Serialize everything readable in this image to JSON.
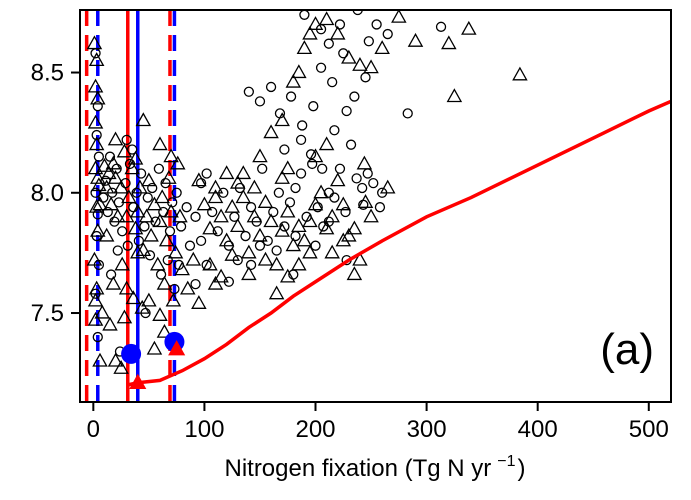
{
  "chart_data": {
    "type": "scatter",
    "title": "",
    "xlabel": "Nitrogen fixation (Tg N yr",
    "xlabel_superscript": "−1",
    "xlabel_close": ")",
    "ylabel": "",
    "panel_label": "(a)",
    "xlim": [
      -12,
      520
    ],
    "ylim": [
      7.13,
      8.76
    ],
    "xticks": [
      0,
      100,
      200,
      300,
      400,
      500
    ],
    "yticks": [
      7.5,
      8.0,
      8.5
    ],
    "xtick_labels": [
      "0",
      "100",
      "200",
      "300",
      "400",
      "500"
    ],
    "ytick_labels": [
      "7.5",
      "8.0",
      "8.5"
    ],
    "grid": false,
    "colors": {
      "red": "#ff0000",
      "blue": "#0000ff",
      "marker": "#000000"
    },
    "series": [
      {
        "marker": "triangle-open",
        "values": [
          [
            1,
            8.62
          ],
          [
            3,
            8.55
          ],
          [
            2,
            8.44
          ],
          [
            4,
            8.39
          ],
          [
            2,
            8.29
          ],
          [
            3,
            8.2
          ],
          [
            2,
            8.1
          ],
          [
            5,
            8.03
          ],
          [
            3,
            7.94
          ],
          [
            4,
            7.84
          ],
          [
            1,
            7.72
          ],
          [
            3,
            7.6
          ],
          [
            2,
            7.55
          ],
          [
            2,
            7.47
          ],
          [
            6,
            7.3
          ],
          [
            4,
            8.06
          ],
          [
            6,
            7.95
          ],
          [
            10,
            8.11
          ],
          [
            12,
            8.02
          ],
          [
            14,
            8.08
          ],
          [
            16,
            7.95
          ],
          [
            18,
            8.12
          ],
          [
            20,
            8.06
          ],
          [
            22,
            7.9
          ],
          [
            25,
            8.02
          ],
          [
            28,
            8.17
          ],
          [
            30,
            7.9
          ],
          [
            32,
            7.98
          ],
          [
            35,
            8.1
          ],
          [
            38,
            7.85
          ],
          [
            40,
            7.92
          ],
          [
            42,
            8.02
          ],
          [
            45,
            7.76
          ],
          [
            48,
            7.9
          ],
          [
            50,
            8.05
          ],
          [
            52,
            7.82
          ],
          [
            55,
            7.95
          ],
          [
            58,
            7.7
          ],
          [
            60,
            7.88
          ],
          [
            62,
            7.98
          ],
          [
            64,
            7.62
          ],
          [
            66,
            7.8
          ],
          [
            68,
            8.06
          ],
          [
            70,
            7.92
          ],
          [
            72,
            7.55
          ],
          [
            74,
            7.75
          ],
          [
            76,
            8.12
          ],
          [
            78,
            7.9
          ],
          [
            80,
            7.68
          ],
          [
            20,
            7.3
          ],
          [
            25,
            7.27
          ],
          [
            30,
            7.6
          ],
          [
            50,
            7.55
          ],
          [
            60,
            7.49
          ],
          [
            40,
            7.75
          ],
          [
            12,
            7.82
          ],
          [
            15,
            7.45
          ],
          [
            45,
            8.3
          ],
          [
            38,
            8.14
          ],
          [
            20,
            8.22
          ],
          [
            8,
            7.5
          ],
          [
            95,
            8.05
          ],
          [
            100,
            7.95
          ],
          [
            105,
            7.85
          ],
          [
            110,
            7.98
          ],
          [
            115,
            7.9
          ],
          [
            120,
            7.8
          ],
          [
            125,
            7.94
          ],
          [
            130,
            7.86
          ],
          [
            135,
            7.98
          ],
          [
            140,
            7.75
          ],
          [
            145,
            7.9
          ],
          [
            150,
            7.82
          ],
          [
            155,
            7.96
          ],
          [
            160,
            7.88
          ],
          [
            165,
            7.7
          ],
          [
            170,
            7.84
          ],
          [
            175,
            7.92
          ],
          [
            180,
            7.78
          ],
          [
            185,
            7.86
          ],
          [
            190,
            7.8
          ],
          [
            195,
            7.88
          ],
          [
            200,
            7.95
          ],
          [
            205,
            8.0
          ],
          [
            210,
            7.85
          ],
          [
            215,
            7.9
          ],
          [
            220,
            8.05
          ],
          [
            225,
            7.8
          ],
          [
            230,
            7.82
          ],
          [
            235,
            7.66
          ],
          [
            240,
            7.72
          ],
          [
            245,
            7.96
          ],
          [
            250,
            7.9
          ],
          [
            160,
            8.25
          ],
          [
            170,
            8.3
          ],
          [
            180,
            8.46
          ],
          [
            185,
            8.5
          ],
          [
            190,
            8.6
          ],
          [
            195,
            8.66
          ],
          [
            200,
            8.7
          ],
          [
            210,
            8.72
          ],
          [
            220,
            8.66
          ],
          [
            230,
            8.56
          ],
          [
            240,
            8.53
          ],
          [
            250,
            8.52
          ],
          [
            260,
            8.6
          ],
          [
            275,
            8.73
          ],
          [
            290,
            8.63
          ],
          [
            320,
            8.62
          ],
          [
            338,
            8.68
          ],
          [
            384,
            8.49
          ],
          [
            325,
            8.4
          ],
          [
            200,
            8.15
          ],
          [
            210,
            8.2
          ],
          [
            175,
            8.1
          ],
          [
            150,
            8.15
          ],
          [
            135,
            8.08
          ],
          [
            125,
            7.74
          ],
          [
            115,
            7.65
          ],
          [
            90,
            7.72
          ],
          [
            85,
            7.6
          ],
          [
            95,
            7.54
          ],
          [
            105,
            7.7
          ],
          [
            110,
            7.62
          ],
          [
            140,
            7.66
          ],
          [
            155,
            7.72
          ],
          [
            165,
            7.58
          ],
          [
            175,
            7.65
          ],
          [
            185,
            7.7
          ],
          [
            195,
            7.75
          ],
          [
            215,
            7.75
          ],
          [
            225,
            7.95
          ],
          [
            265,
            8.02
          ],
          [
            235,
            7.85
          ],
          [
            244,
            8.12
          ],
          [
            60,
            8.2
          ],
          [
            70,
            8.15
          ],
          [
            73,
            7.38
          ],
          [
            55,
            7.35
          ],
          [
            64,
            7.42
          ],
          [
            28,
            7.48
          ],
          [
            36,
            7.56
          ],
          [
            44,
            7.52
          ],
          [
            18,
            7.62
          ],
          [
            26,
            7.7
          ],
          [
            110,
            8.02
          ],
          [
            120,
            8.08
          ],
          [
            130,
            8.04
          ],
          [
            145,
            8.02
          ],
          [
            170,
            8.06
          ]
        ]
      },
      {
        "marker": "circle-open",
        "values": [
          [
            2,
            8.58
          ],
          [
            4,
            8.36
          ],
          [
            3,
            8.24
          ],
          [
            5,
            8.15
          ],
          [
            2,
            8.0
          ],
          [
            4,
            7.91
          ],
          [
            3,
            7.82
          ],
          [
            5,
            7.7
          ],
          [
            2,
            7.58
          ],
          [
            4,
            7.4
          ],
          [
            9,
            7.98
          ],
          [
            11,
            8.05
          ],
          [
            13,
            7.92
          ],
          [
            15,
            8.15
          ],
          [
            17,
            8.0
          ],
          [
            19,
            7.88
          ],
          [
            21,
            8.1
          ],
          [
            23,
            7.96
          ],
          [
            26,
            7.84
          ],
          [
            29,
            8.04
          ],
          [
            31,
            7.78
          ],
          [
            33,
            8.12
          ],
          [
            36,
            7.94
          ],
          [
            39,
            8.0
          ],
          [
            41,
            7.8
          ],
          [
            43,
            8.08
          ],
          [
            46,
            7.86
          ],
          [
            49,
            7.98
          ],
          [
            51,
            7.74
          ],
          [
            53,
            8.02
          ],
          [
            56,
            7.88
          ],
          [
            59,
            8.1
          ],
          [
            61,
            7.66
          ],
          [
            63,
            7.92
          ],
          [
            65,
            8.04
          ],
          [
            67,
            7.72
          ],
          [
            69,
            7.84
          ],
          [
            71,
            7.96
          ],
          [
            73,
            7.6
          ],
          [
            75,
            8.0
          ],
          [
            77,
            7.7
          ],
          [
            79,
            7.86
          ],
          [
            24,
            7.34
          ],
          [
            30,
            8.22
          ],
          [
            35,
            8.18
          ],
          [
            16,
            7.66
          ],
          [
            22,
            7.76
          ],
          [
            47,
            7.5
          ],
          [
            92,
            7.9
          ],
          [
            97,
            7.8
          ],
          [
            102,
            8.08
          ],
          [
            107,
            7.92
          ],
          [
            112,
            7.84
          ],
          [
            117,
            8.0
          ],
          [
            122,
            7.78
          ],
          [
            127,
            7.9
          ],
          [
            132,
            8.02
          ],
          [
            137,
            7.82
          ],
          [
            142,
            7.94
          ],
          [
            147,
            7.88
          ],
          [
            152,
            8.1
          ],
          [
            157,
            7.8
          ],
          [
            162,
            7.92
          ],
          [
            167,
            8.0
          ],
          [
            172,
            7.86
          ],
          [
            177,
            7.96
          ],
          [
            182,
            7.82
          ],
          [
            187,
            8.08
          ],
          [
            192,
            7.9
          ],
          [
            197,
            8.12
          ],
          [
            202,
            7.94
          ],
          [
            207,
            7.86
          ],
          [
            212,
            8.0
          ],
          [
            217,
            7.98
          ],
          [
            222,
            8.1
          ],
          [
            227,
            7.92
          ],
          [
            232,
            8.2
          ],
          [
            237,
            8.06
          ],
          [
            242,
            8.02
          ],
          [
            247,
            8.08
          ],
          [
            252,
            8.04
          ],
          [
            258,
            7.94
          ],
          [
            140,
            8.42
          ],
          [
            150,
            8.38
          ],
          [
            160,
            8.44
          ],
          [
            168,
            8.33
          ],
          [
            178,
            8.4
          ],
          [
            188,
            8.28
          ],
          [
            198,
            8.36
          ],
          [
            205,
            8.52
          ],
          [
            215,
            8.46
          ],
          [
            225,
            8.58
          ],
          [
            235,
            8.4
          ],
          [
            245,
            8.48
          ],
          [
            255,
            8.7
          ],
          [
            265,
            8.66
          ],
          [
            190,
            8.74
          ],
          [
            205,
            8.68
          ],
          [
            212,
            8.62
          ],
          [
            222,
            8.7
          ],
          [
            238,
            8.76
          ],
          [
            248,
            8.63
          ],
          [
            283,
            8.33
          ],
          [
            313,
            8.69
          ],
          [
            228,
            8.34
          ],
          [
            217,
            8.26
          ],
          [
            187,
            8.22
          ],
          [
            196,
            8.16
          ],
          [
            172,
            8.18
          ],
          [
            182,
            8.02
          ],
          [
            206,
            8.1
          ],
          [
            212,
            7.88
          ],
          [
            180,
            7.66
          ],
          [
            142,
            7.7
          ],
          [
            122,
            7.63
          ],
          [
            102,
            7.7
          ],
          [
            92,
            7.62
          ],
          [
            87,
            7.78
          ],
          [
            84,
            7.94
          ],
          [
            97,
            8.04
          ],
          [
            130,
            7.72
          ],
          [
            150,
            7.78
          ],
          [
            165,
            7.76
          ],
          [
            200,
            7.78
          ],
          [
            228,
            7.72
          ],
          [
            243,
            7.95
          ],
          [
            260,
            8.0
          ]
        ]
      },
      {
        "name": "",
        "type": "line",
        "color": "#ff0000",
        "x": [
          30,
          40,
          60,
          80,
          100,
          120,
          140,
          160,
          180,
          200,
          230,
          260,
          300,
          340,
          380,
          420,
          460,
          500,
          520
        ],
        "y": [
          7.2,
          7.21,
          7.22,
          7.26,
          7.31,
          7.37,
          7.44,
          7.5,
          7.57,
          7.63,
          7.72,
          7.8,
          7.9,
          7.98,
          8.07,
          8.16,
          8.25,
          8.34,
          8.38
        ]
      }
    ],
    "highlight_points": [
      {
        "x": 34,
        "y": 7.33,
        "color": "#0000ff",
        "marker": "circle-filled"
      },
      {
        "x": 73,
        "y": 7.38,
        "color": "#0000ff",
        "marker": "circle-filled"
      },
      {
        "x": 40,
        "y": 7.21,
        "color": "#ff0000",
        "marker": "triangle-filled"
      },
      {
        "x": 75,
        "y": 7.35,
        "color": "#ff0000",
        "marker": "triangle-filled"
      }
    ],
    "vertical_lines": [
      {
        "x": -6,
        "color": "#ff0000",
        "style": "dashed"
      },
      {
        "x": 4,
        "color": "#0000ff",
        "style": "dashed"
      },
      {
        "x": 31,
        "color": "#ff0000",
        "style": "solid"
      },
      {
        "x": 40,
        "color": "#0000ff",
        "style": "solid"
      },
      {
        "x": 69,
        "color": "#ff0000",
        "style": "dashed"
      },
      {
        "x": 73,
        "color": "#0000ff",
        "style": "dashed"
      }
    ]
  }
}
